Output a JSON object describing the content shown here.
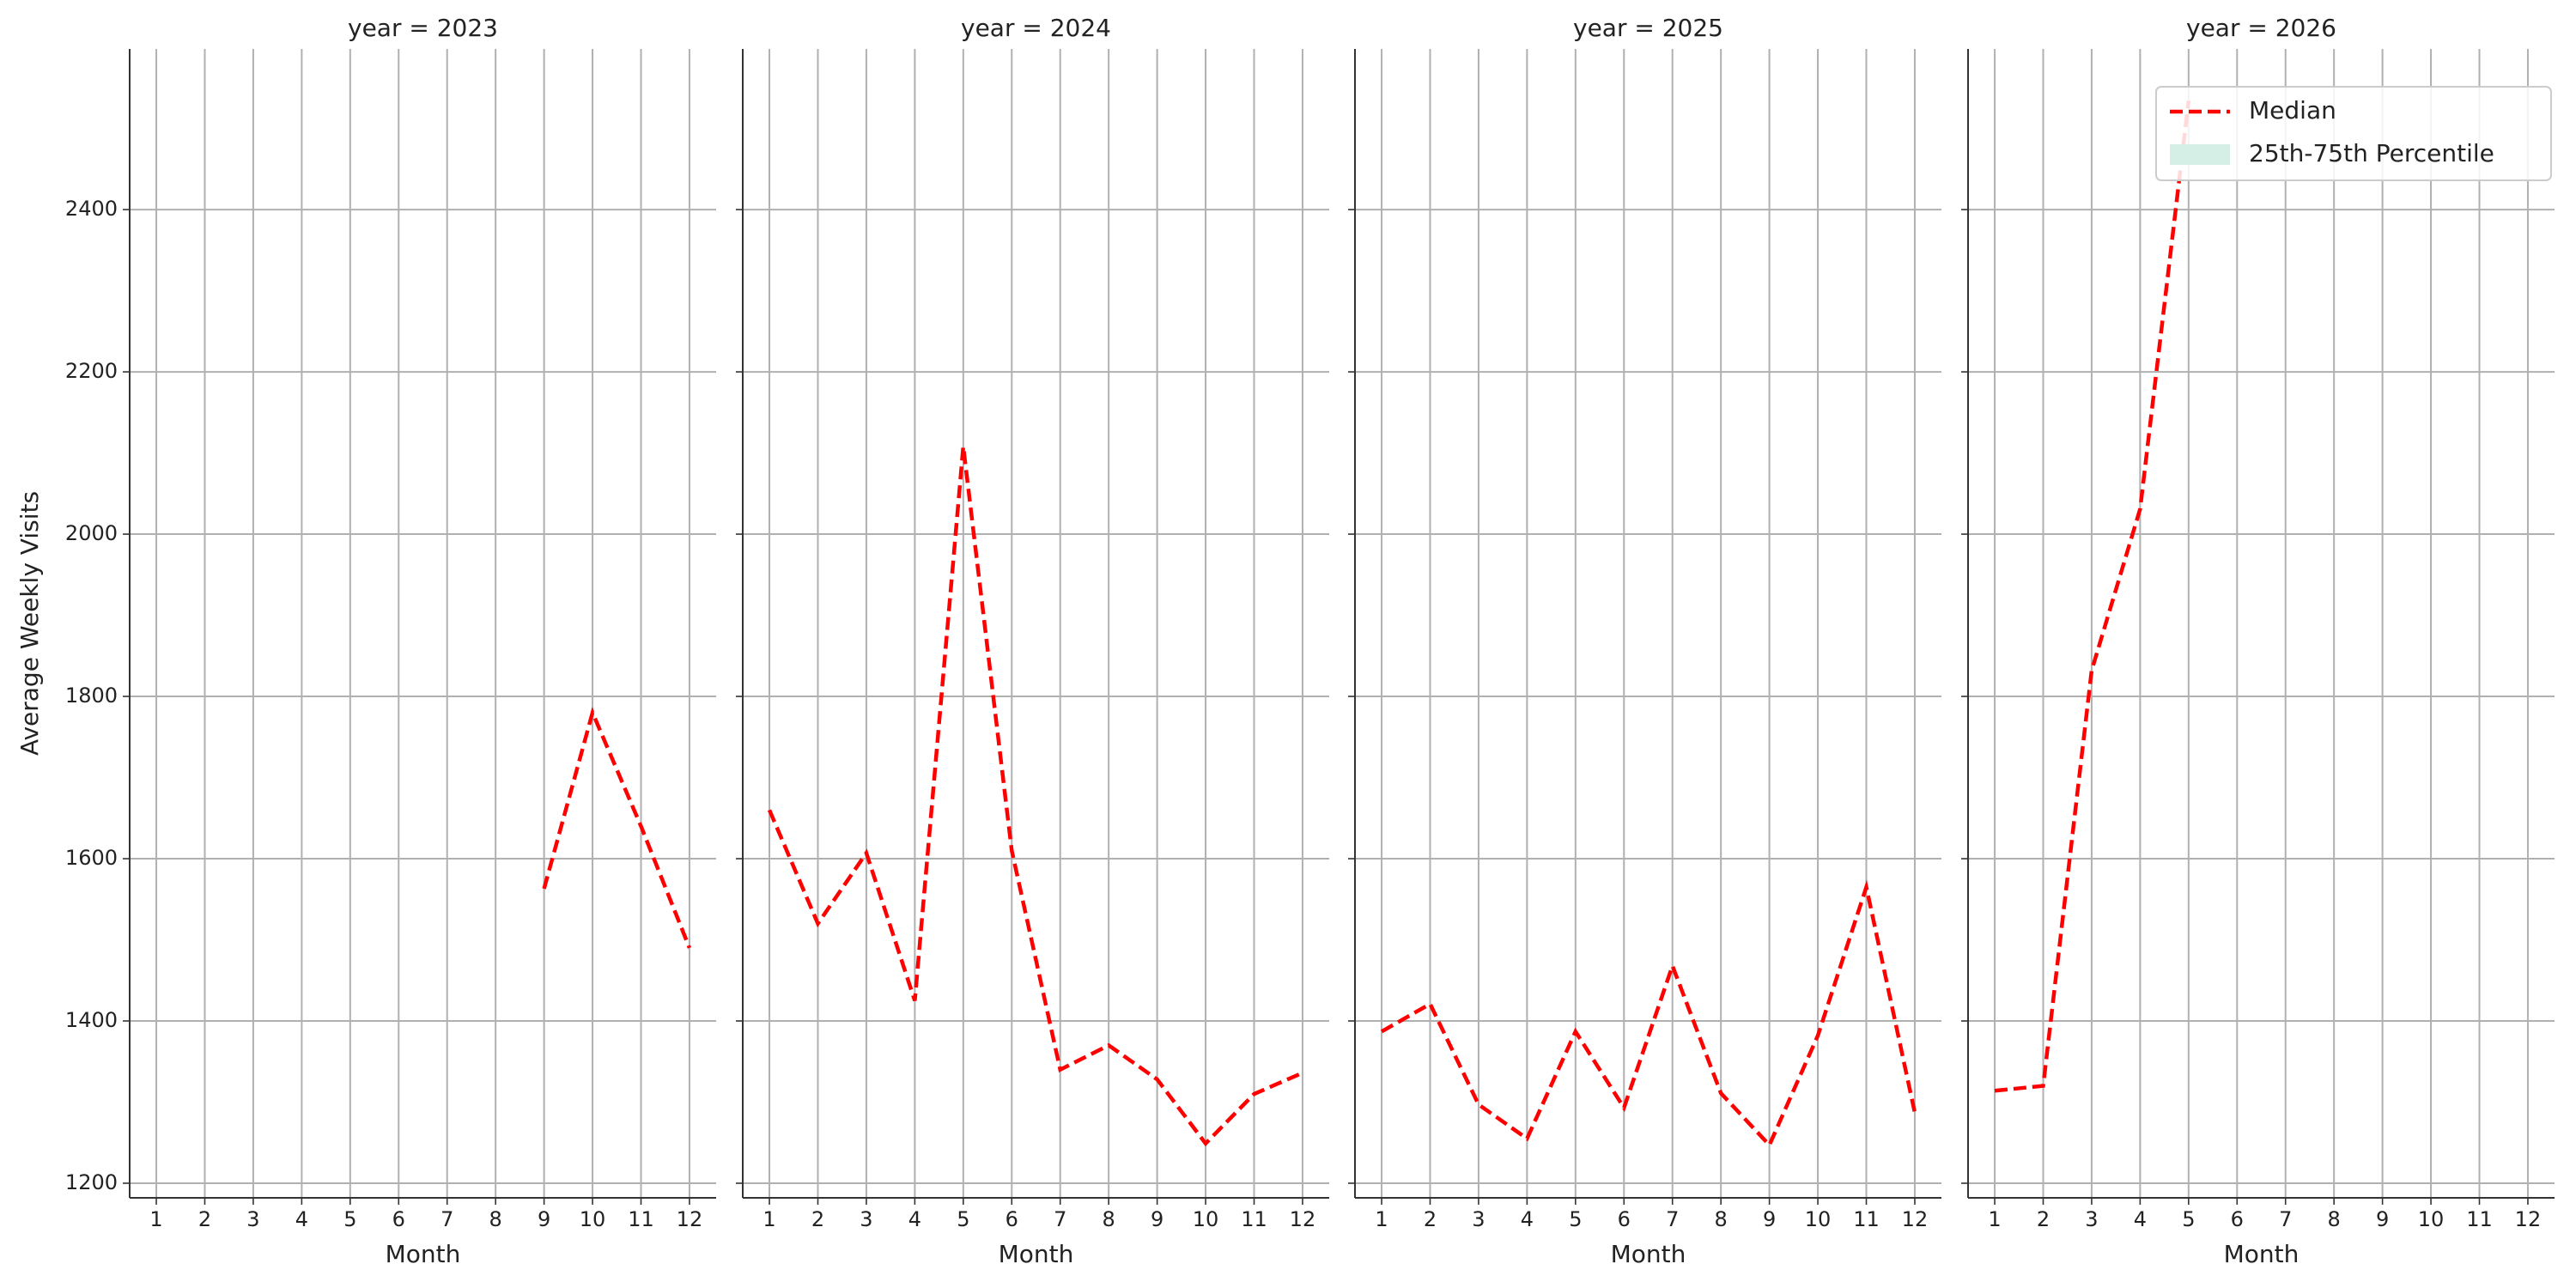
{
  "chart_data": [
    {
      "type": "line",
      "title": "year = 2023",
      "x_label": "Month",
      "y_label": "Average Weekly Visits",
      "x": [
        1,
        2,
        3,
        4,
        5,
        6,
        7,
        8,
        9,
        10,
        11,
        12
      ],
      "xlim": [
        0.45,
        12.55
      ],
      "xticks": [
        1,
        2,
        3,
        4,
        5,
        6,
        7,
        8,
        9,
        10,
        11,
        12
      ],
      "ylim": [
        1182,
        2598
      ],
      "yticks": [
        1200,
        1400,
        1600,
        1800,
        2000,
        2200,
        2400
      ],
      "ytick_labels": true,
      "grid": true,
      "series": [
        {
          "name": "Median",
          "color": "#ff0000",
          "dashed": true,
          "values": [
            null,
            null,
            null,
            null,
            null,
            null,
            null,
            null,
            1563,
            1780,
            1640,
            1490
          ]
        }
      ]
    },
    {
      "type": "line",
      "title": "year = 2024",
      "x_label": "Month",
      "x": [
        1,
        2,
        3,
        4,
        5,
        6,
        7,
        8,
        9,
        10,
        11,
        12
      ],
      "xlim": [
        0.45,
        12.55
      ],
      "xticks": [
        1,
        2,
        3,
        4,
        5,
        6,
        7,
        8,
        9,
        10,
        11,
        12
      ],
      "ylim": [
        1182,
        2598
      ],
      "yticks": [
        1200,
        1400,
        1600,
        1800,
        2000,
        2200,
        2400
      ],
      "ytick_labels": false,
      "grid": true,
      "series": [
        {
          "name": "Median",
          "color": "#ff0000",
          "dashed": true,
          "values": [
            1660,
            1520,
            1607,
            1425,
            2108,
            1610,
            1340,
            1370,
            1328,
            1249,
            1310,
            1336
          ]
        }
      ]
    },
    {
      "type": "line",
      "title": "year = 2025",
      "x_label": "Month",
      "x": [
        1,
        2,
        3,
        4,
        5,
        6,
        7,
        8,
        9,
        10,
        11,
        12
      ],
      "xlim": [
        0.45,
        12.55
      ],
      "xticks": [
        1,
        2,
        3,
        4,
        5,
        6,
        7,
        8,
        9,
        10,
        11,
        12
      ],
      "ylim": [
        1182,
        2598
      ],
      "yticks": [
        1200,
        1400,
        1600,
        1800,
        2000,
        2200,
        2400
      ],
      "ytick_labels": false,
      "grid": true,
      "series": [
        {
          "name": "Median",
          "color": "#ff0000",
          "dashed": true,
          "values": [
            1387,
            1421,
            1297,
            1255,
            1387,
            1293,
            1468,
            1311,
            1247,
            1382,
            1565,
            1287
          ]
        }
      ]
    },
    {
      "type": "line",
      "title": "year = 2026",
      "x_label": "Month",
      "x": [
        1,
        2,
        3,
        4,
        5,
        6,
        7,
        8,
        9,
        10,
        11,
        12
      ],
      "xlim": [
        0.45,
        12.55
      ],
      "xticks": [
        1,
        2,
        3,
        4,
        5,
        6,
        7,
        8,
        9,
        10,
        11,
        12
      ],
      "ylim": [
        1182,
        2598
      ],
      "yticks": [
        1200,
        1400,
        1600,
        1800,
        2000,
        2200,
        2400
      ],
      "ytick_labels": false,
      "grid": true,
      "series": [
        {
          "name": "Median",
          "color": "#ff0000",
          "dashed": true,
          "values": [
            1314,
            1320,
            1832,
            2031,
            2534,
            null,
            null,
            null,
            null,
            null,
            null,
            null
          ]
        }
      ],
      "legend": {
        "loc": "upper right",
        "entries": [
          {
            "name": "Median",
            "color": "#ff0000",
            "dashed": true
          },
          {
            "name": "25th-75th Percentile",
            "color": "#d5efe6",
            "dashed": false
          }
        ]
      }
    }
  ]
}
